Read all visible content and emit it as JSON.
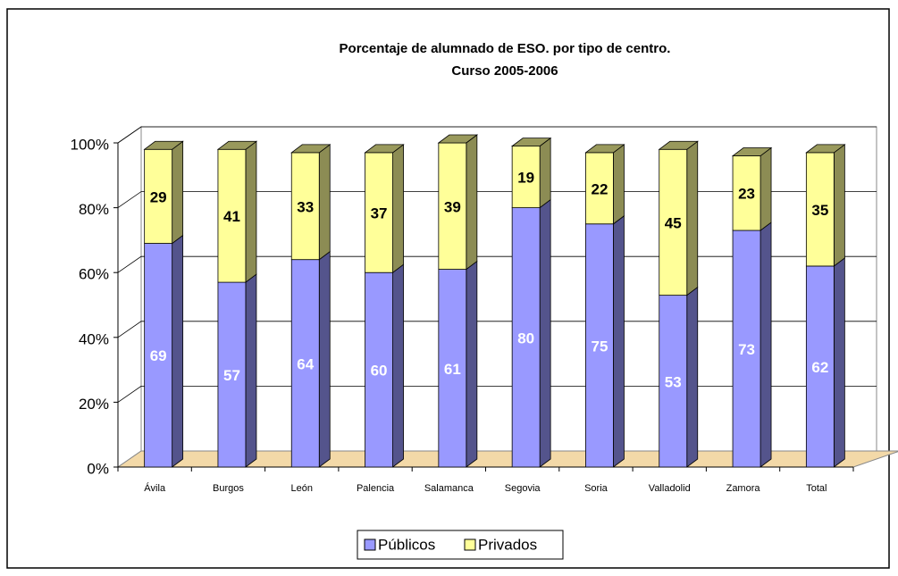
{
  "chart_data": {
    "type": "bar",
    "stacked": true,
    "title": "Porcentaje de alumnado de ESO. por tipo de centro.",
    "subtitle": "Curso 2005-2006",
    "categories": [
      "Ávila",
      "Burgos",
      "León",
      "Palencia",
      "Salamanca",
      "Segovia",
      "Soria",
      "Valladolid",
      "Zamora",
      "Total"
    ],
    "series": [
      {
        "name": "Públicos",
        "color": "#9999ff",
        "values": [
          69,
          57,
          64,
          60,
          61,
          80,
          75,
          53,
          73,
          62
        ]
      },
      {
        "name": "Privados",
        "color": "#ffff99",
        "values": [
          29,
          41,
          33,
          37,
          39,
          19,
          22,
          45,
          23,
          35
        ]
      }
    ],
    "ylim": [
      0,
      100
    ],
    "yticks": [
      {
        "value": 0,
        "label": "0%"
      },
      {
        "value": 20,
        "label": "20%"
      },
      {
        "value": 40,
        "label": "40%"
      },
      {
        "value": 60,
        "label": "60%"
      },
      {
        "value": 80,
        "label": "80%"
      },
      {
        "value": 100,
        "label": "100%"
      }
    ],
    "grid": true,
    "legend": "bottom"
  }
}
